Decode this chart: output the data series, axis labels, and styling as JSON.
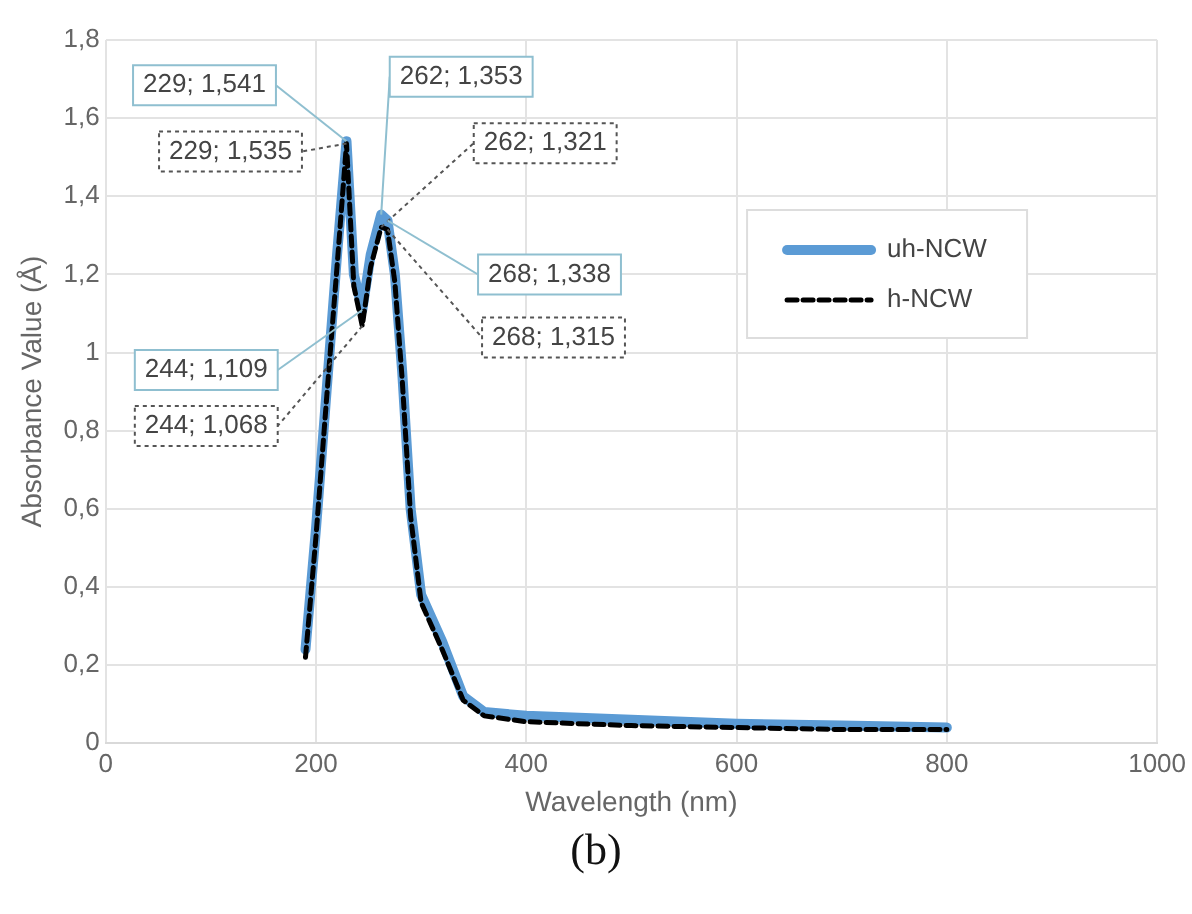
{
  "chart_data": {
    "type": "line",
    "xlabel": "Wavelength (nm)",
    "ylabel": "Absorbance Value (Å)",
    "xlim": [
      0,
      1000
    ],
    "xticks": [
      0,
      200,
      400,
      600,
      800,
      1000
    ],
    "ylim": [
      0,
      1.8
    ],
    "yticks": [
      0,
      {
        "value": 0.2,
        "label": "0,2"
      },
      {
        "value": 0.4,
        "label": "0,4"
      },
      {
        "value": 0.6,
        "label": "0,6"
      },
      {
        "value": 0.8,
        "label": "0,8"
      },
      1,
      {
        "value": 1.2,
        "label": "1,2"
      },
      {
        "value": 1.4,
        "label": "1,4"
      },
      {
        "value": 1.6,
        "label": "1,6"
      },
      {
        "value": 1.8,
        "label": "1,8"
      }
    ],
    "grid": true,
    "legend": "right",
    "marker": "none",
    "series": [
      {
        "name": "uh-NCW",
        "color": "#5b9bd5",
        "line_style": "solid",
        "x": [
          190,
          200,
          210,
          220,
          229,
          236,
          244,
          252,
          262,
          268,
          275,
          282,
          290,
          300,
          320,
          340,
          360,
          400,
          500,
          600,
          700,
          800
        ],
        "values": [
          0.24,
          0.55,
          0.9,
          1.25,
          1.541,
          1.2,
          1.109,
          1.25,
          1.353,
          1.338,
          1.2,
          0.95,
          0.6,
          0.38,
          0.26,
          0.12,
          0.08,
          0.07,
          0.06,
          0.05,
          0.045,
          0.04
        ]
      },
      {
        "name": "h-NCW",
        "color": "#000000",
        "line_style": "dashed",
        "x": [
          190,
          200,
          210,
          220,
          229,
          236,
          244,
          252,
          262,
          268,
          275,
          282,
          290,
          300,
          320,
          340,
          360,
          400,
          500,
          600,
          700,
          800
        ],
        "values": [
          0.22,
          0.53,
          0.88,
          1.22,
          1.535,
          1.17,
          1.068,
          1.22,
          1.321,
          1.315,
          1.18,
          0.93,
          0.58,
          0.36,
          0.24,
          0.11,
          0.07,
          0.055,
          0.045,
          0.04,
          0.035,
          0.035
        ]
      }
    ],
    "annotations": [
      {
        "text": "229; 1,541",
        "x": 229,
        "y": 1.541
      },
      {
        "text": "229; 1,535",
        "x": 229,
        "y": 1.535
      },
      {
        "text": "262; 1,353",
        "x": 262,
        "y": 1.353
      },
      {
        "text": "262; 1,321",
        "x": 262,
        "y": 1.321
      },
      {
        "text": "268; 1,338",
        "x": 268,
        "y": 1.338
      },
      {
        "text": "268; 1,315",
        "x": 268,
        "y": 1.315
      },
      {
        "text": "244; 1,109",
        "x": 244,
        "y": 1.109
      },
      {
        "text": "244; 1,068",
        "x": 244,
        "y": 1.068
      },
      "(b)"
    ]
  }
}
